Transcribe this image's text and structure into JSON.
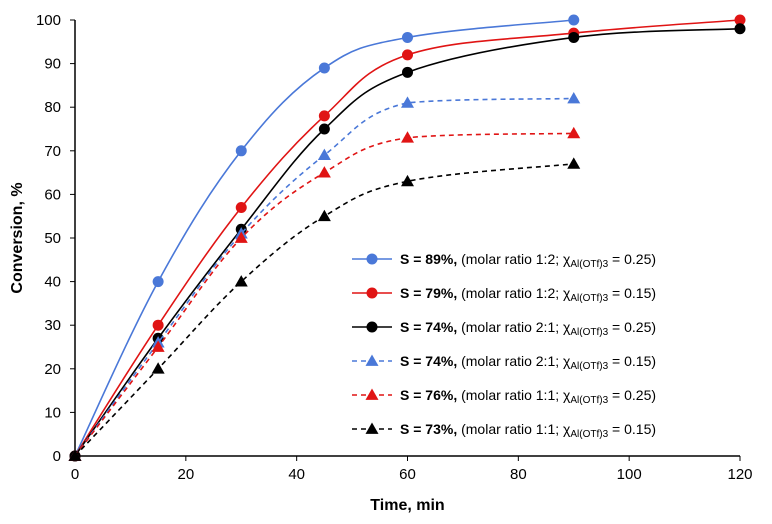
{
  "chart_data": {
    "type": "line",
    "title": "",
    "xlabel": "Time, min",
    "ylabel": "Conversion, %",
    "xlim": [
      0,
      120
    ],
    "ylim": [
      0,
      100
    ],
    "xticks": [
      0,
      20,
      40,
      60,
      80,
      100,
      120
    ],
    "yticks": [
      0,
      10,
      20,
      30,
      40,
      50,
      60,
      70,
      80,
      90,
      100
    ],
    "grid": false,
    "legend_position": "lower-right",
    "series": [
      {
        "name": "S = 89%, (molar ratio 1:2; χAl(OTf)3 = 0.25)",
        "legend_bold": "S = 89%,",
        "legend_main": " (molar ratio 1:2; χ",
        "legend_sub": "Al(OTf)3",
        "legend_tail": " = 0.25)",
        "color": "#4a78d8",
        "marker": "circle",
        "dashed": false,
        "x": [
          0,
          15,
          30,
          45,
          60,
          90
        ],
        "y": [
          0,
          40,
          70,
          89,
          96,
          100
        ]
      },
      {
        "name": "S = 79%, (molar ratio 1:2; χAl(OTf)3 = 0.15)",
        "legend_bold": "S = 79%,",
        "legend_main": " (molar ratio 1:2; χ",
        "legend_sub": "Al(OTf)3",
        "legend_tail": " = 0.15)",
        "color": "#e01414",
        "marker": "circle",
        "dashed": false,
        "x": [
          0,
          15,
          30,
          45,
          60,
          90,
          120
        ],
        "y": [
          0,
          30,
          57,
          78,
          92,
          97,
          100
        ]
      },
      {
        "name": "S = 74%, (molar ratio 2:1; χAl(OTf)3 = 0.25)",
        "legend_bold": "S = 74%,",
        "legend_main": " (molar ratio 2:1; χ",
        "legend_sub": "Al(OTf)3",
        "legend_tail": " = 0.25)",
        "color": "#000000",
        "marker": "circle",
        "dashed": false,
        "x": [
          0,
          15,
          30,
          45,
          60,
          90,
          120
        ],
        "y": [
          0,
          27,
          52,
          75,
          88,
          96,
          98
        ]
      },
      {
        "name": "S = 74%, (molar ratio 2:1; χAl(OTf)3 = 0.15)",
        "legend_bold": "S = 74%,",
        "legend_main": " (molar ratio 2:1; χ",
        "legend_sub": "Al(OTf)3",
        "legend_tail": " = 0.15)",
        "color": "#4a78d8",
        "marker": "triangle",
        "dashed": true,
        "x": [
          0,
          15,
          30,
          45,
          60,
          90
        ],
        "y": [
          0,
          26,
          51,
          69,
          81,
          82
        ]
      },
      {
        "name": "S = 76%, (molar ratio 1:1; χAl(OTf)3 = 0.25)",
        "legend_bold": "S = 76%,",
        "legend_main": " (molar ratio 1:1; χ",
        "legend_sub": "Al(OTf)3",
        "legend_tail": " = 0.25)",
        "color": "#e01414",
        "marker": "triangle",
        "dashed": true,
        "x": [
          0,
          15,
          30,
          45,
          60,
          90
        ],
        "y": [
          0,
          25,
          50,
          65,
          73,
          74
        ]
      },
      {
        "name": "S = 73%, (molar ratio 1:1; χAl(OTf)3 = 0.15)",
        "legend_bold": "S = 73%,",
        "legend_main": " (molar ratio 1:1; χ",
        "legend_sub": "Al(OTf)3",
        "legend_tail": " = 0.15)",
        "color": "#000000",
        "marker": "triangle",
        "dashed": true,
        "x": [
          0,
          15,
          30,
          45,
          60,
          90
        ],
        "y": [
          0,
          20,
          40,
          55,
          63,
          67
        ]
      }
    ]
  }
}
